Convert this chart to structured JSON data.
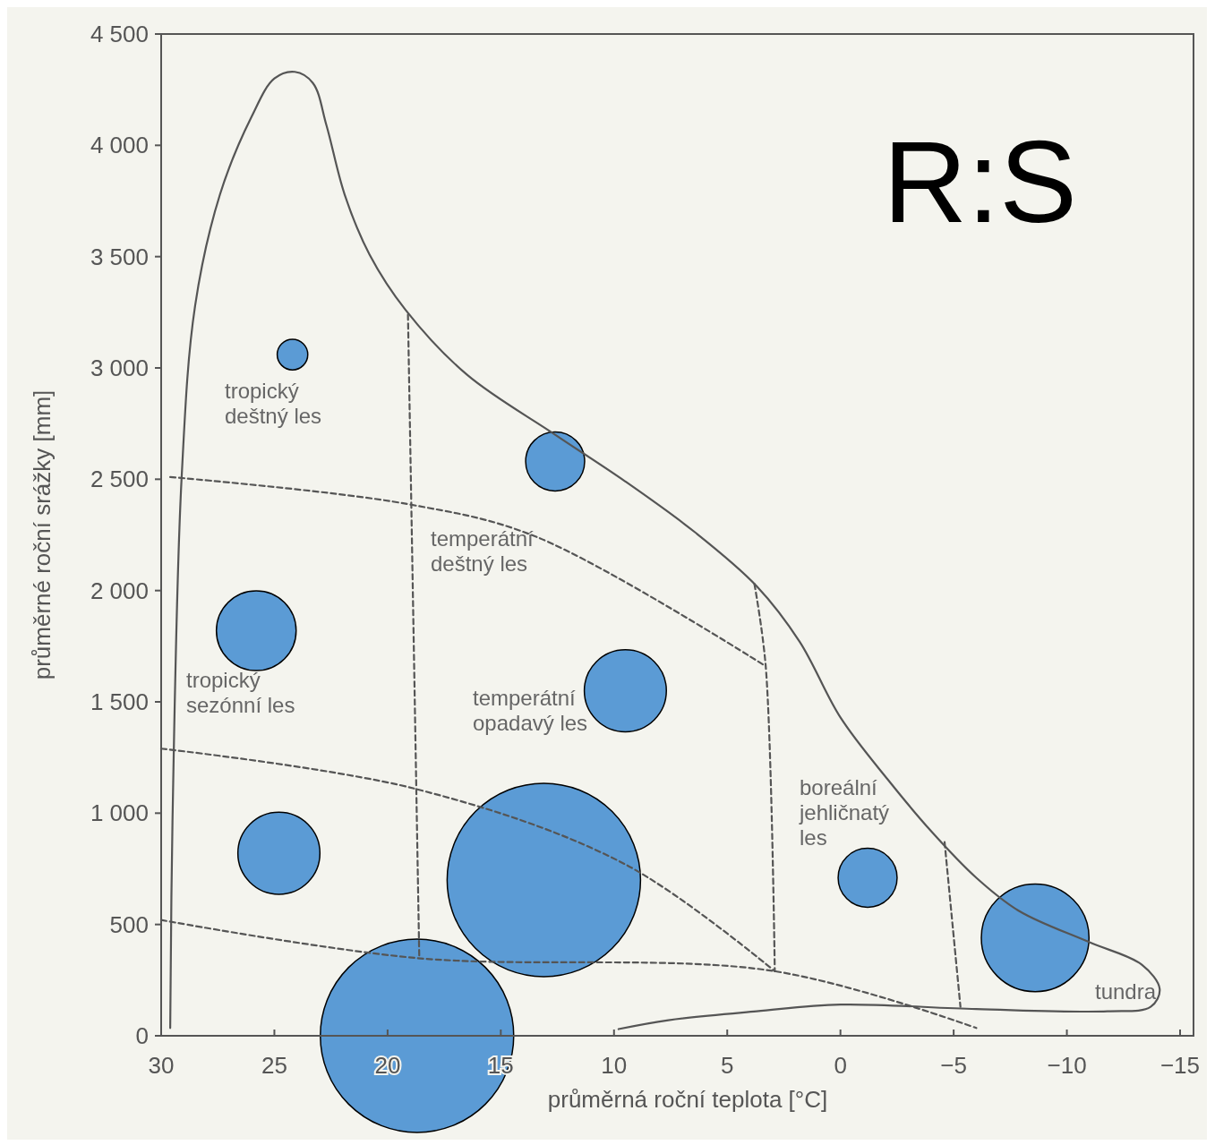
{
  "chart_data": {
    "type": "bubble",
    "title": "R:S",
    "xlabel": "průměrná roční teplota [°C]",
    "ylabel": "průměrné roční srážky [mm]",
    "xlim": [
      30,
      -15
    ],
    "ylim": [
      0,
      4500
    ],
    "xticks": [
      30,
      25,
      20,
      15,
      10,
      5,
      0,
      {
        "value": -5,
        "label": "−5"
      },
      {
        "value": -10,
        "label": "−10"
      },
      {
        "value": -15,
        "label": "−15"
      }
    ],
    "yticks": [
      0,
      500,
      {
        "value": 1000,
        "label": "1 000"
      },
      {
        "value": 1500,
        "label": "1 500"
      },
      {
        "value": 2000,
        "label": "2 000"
      },
      {
        "value": 2500,
        "label": "2 500"
      },
      {
        "value": 3000,
        "label": "3 000"
      },
      {
        "value": 3500,
        "label": "3 500"
      },
      {
        "value": 4000,
        "label": "4 000"
      },
      {
        "value": 4500,
        "label": "4 500"
      }
    ],
    "annotations": [
      "tropický deštný les",
      "temperátní deštný les",
      "tropický sezónní les",
      "temperátní opadavý les",
      "boreální jehličnatý les",
      "tundra"
    ],
    "series": [
      {
        "type": "line",
        "color": "#555555",
        "line_style": "solid",
        "x": [
          29.6,
          29.5,
          29.1,
          28.5,
          27.4,
          26.0,
          25.0,
          24.1,
          23.3,
          22.7,
          21.9,
          20.8,
          19.2,
          16.5,
          12.6,
          9.5,
          6.4,
          3.7,
          1.8,
          0,
          -2.1,
          -4.0,
          -6.0,
          -7.9,
          -11.0,
          -13.3,
          -14.1,
          -13.7,
          -11.8,
          -6.0,
          0,
          3.7,
          7.6,
          9.8
        ],
        "values": [
          35,
          960,
          2500,
          3280,
          3780,
          4130,
          4300,
          4330,
          4280,
          4090,
          3780,
          3510,
          3260,
          2970,
          2700,
          2490,
          2260,
          2020,
          1770,
          1430,
          1150,
          920,
          710,
          560,
          420,
          320,
          210,
          130,
          110,
          120,
          140,
          110,
          70,
          30
        ]
      },
      {
        "type": "line",
        "color": "#555555",
        "line_style": "dashed",
        "x": [
          29.6,
          19.2,
          13.4,
          3.3
        ],
        "values": [
          2510,
          2390,
          2240,
          1660
        ]
      },
      {
        "type": "line",
        "color": "#555555",
        "line_style": "dashed",
        "x": [
          30,
          18.8,
          9.5,
          2.9
        ],
        "values": [
          1290,
          1110,
          770,
          290
        ]
      },
      {
        "type": "line",
        "color": "#555555",
        "line_style": "dashed",
        "x": [
          30,
          18.8,
          2.9,
          -6.0
        ],
        "values": [
          520,
          350,
          290,
          35
        ]
      },
      {
        "type": "line",
        "color": "#555555",
        "line_style": "dashed",
        "x": [
          19.1,
          18.6
        ],
        "values": [
          3240,
          350
        ]
      },
      {
        "type": "line",
        "color": "#555555",
        "line_style": "dashed",
        "x": [
          3.8,
          3.3,
          2.9
        ],
        "values": [
          2030,
          1660,
          290
        ]
      },
      {
        "type": "line",
        "color": "#555555",
        "line_style": "dashed",
        "x": [
          -4.6,
          -5.3
        ],
        "values": [
          870,
          130
        ]
      },
      {
        "color": "#5b9bd5",
        "x": [
          24.2,
          12.6,
          25.8,
          9.5,
          24.8,
          13.1,
          18.7,
          -1.2,
          -8.6
        ],
        "values": [
          3060,
          2580,
          1820,
          1550,
          820,
          700,
          0,
          710,
          440
        ],
        "sizes": [
          0.025,
          0.093,
          0.17,
          0.18,
          0.18,
          1,
          1,
          0.093,
          0.31
        ]
      }
    ]
  }
}
